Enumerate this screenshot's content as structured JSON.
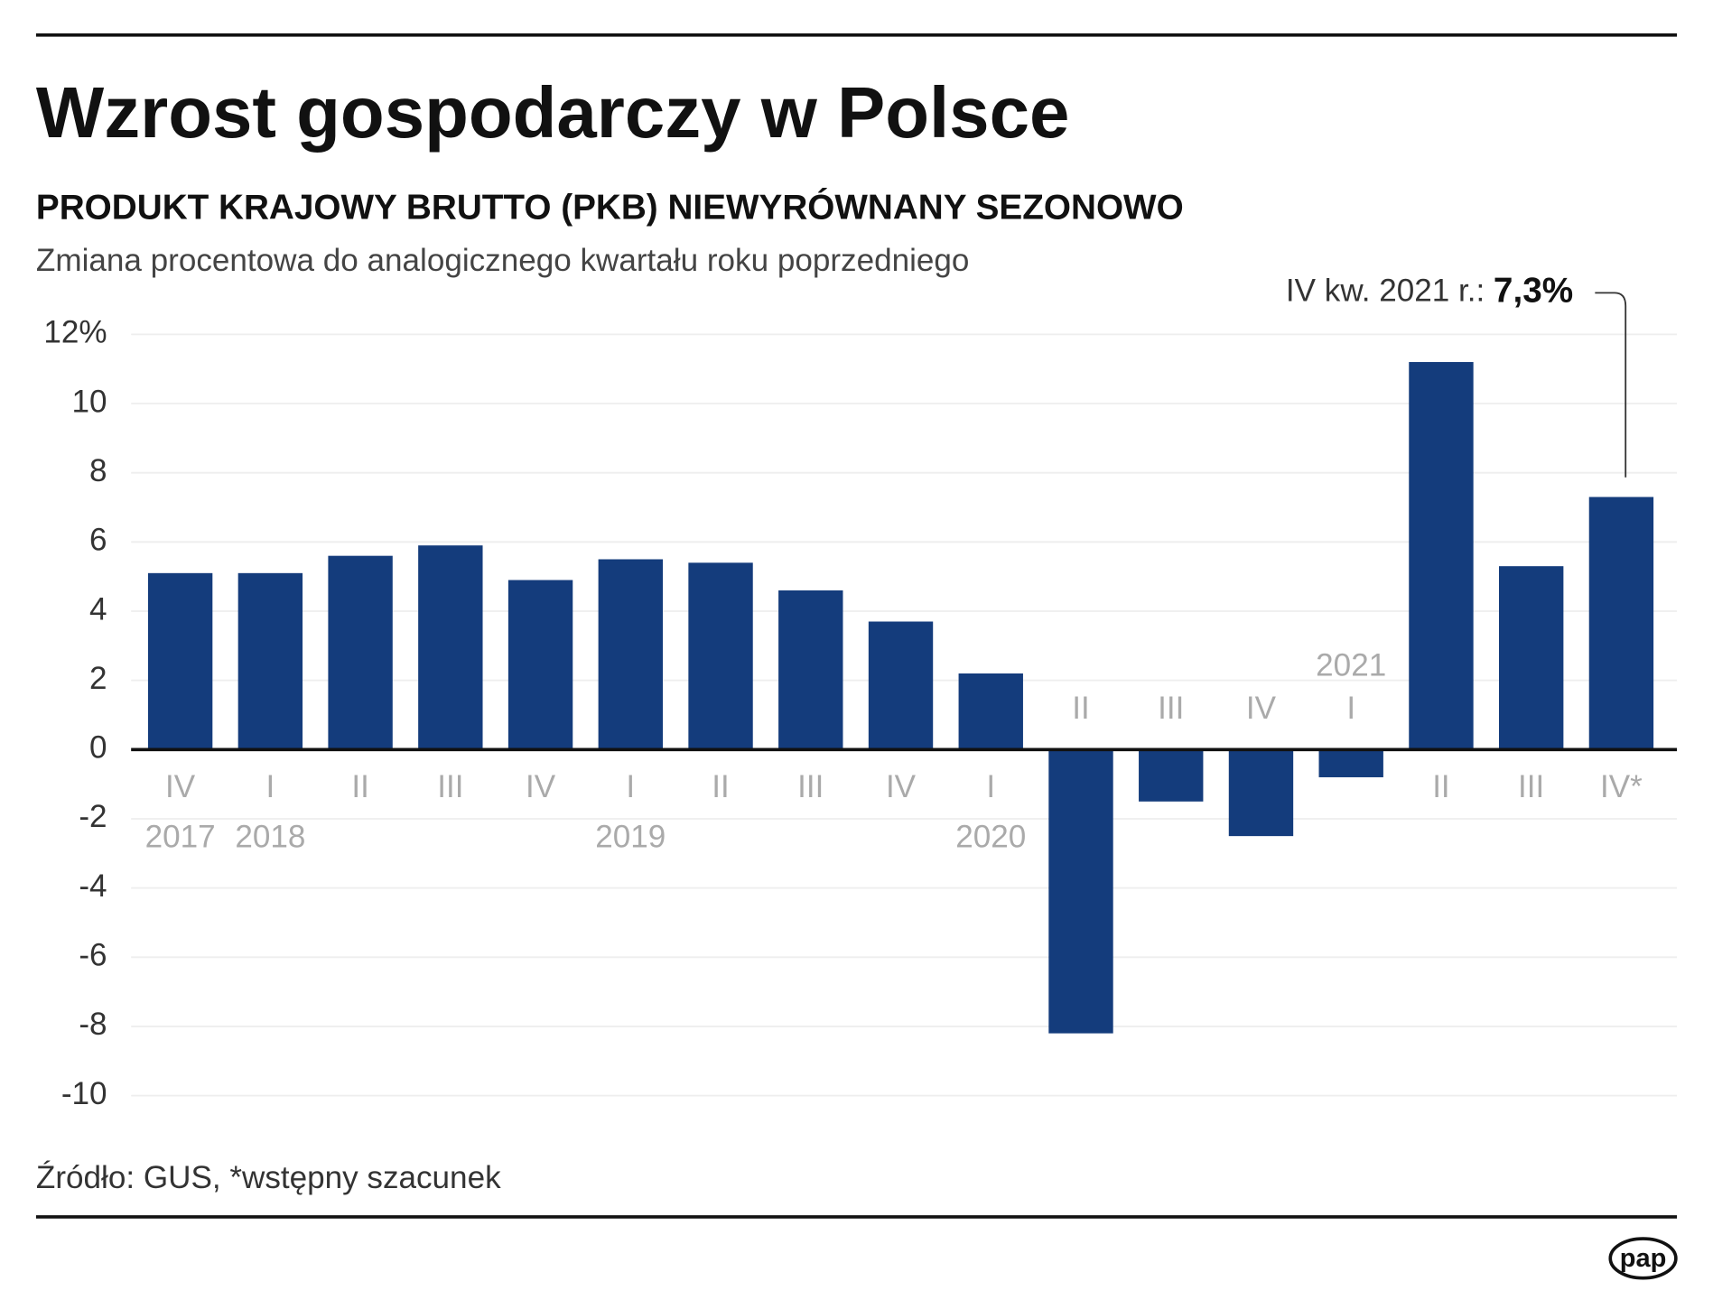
{
  "chart_data": {
    "type": "bar",
    "title": "Wzrost gospodarczy w Polsce",
    "subtitle": "PRODUKT KRAJOWY BRUTTO (PKB) NIEWYRÓWNANY SEZONOWO",
    "y_label": "Zmiana procentowa do analogicznego kwartału roku poprzedniego",
    "categories": [
      "IV",
      "I",
      "II",
      "III",
      "IV",
      "I",
      "II",
      "III",
      "IV",
      "I",
      "II",
      "III",
      "IV",
      "I",
      "II",
      "III",
      "IV*"
    ],
    "years": [
      "2017",
      "2018",
      null,
      null,
      null,
      "2019",
      null,
      null,
      null,
      "2020",
      null,
      null,
      null,
      "2021",
      null,
      null,
      null
    ],
    "values": [
      5.1,
      5.1,
      5.6,
      5.9,
      4.9,
      5.5,
      5.4,
      4.6,
      3.7,
      2.2,
      -8.2,
      -1.5,
      -2.5,
      -0.8,
      11.2,
      5.3,
      7.3
    ],
    "value_labels": [
      null,
      null,
      null,
      null,
      null,
      null,
      null,
      null,
      null,
      null,
      null,
      null,
      null,
      null,
      null,
      null,
      "7,3%"
    ],
    "annotation": "IV kw. 2021 r.:",
    "color": "#143c7c",
    "ylim": [
      -10,
      12
    ],
    "yticks": [
      -10,
      -8,
      -6,
      -4,
      -2,
      0,
      2,
      4,
      6,
      8,
      10,
      {
        "value": 12,
        "label": "12%"
      }
    ],
    "grid": true,
    "source": "Źródło: GUS, *wstępny szacunek",
    "logo": "pap"
  }
}
